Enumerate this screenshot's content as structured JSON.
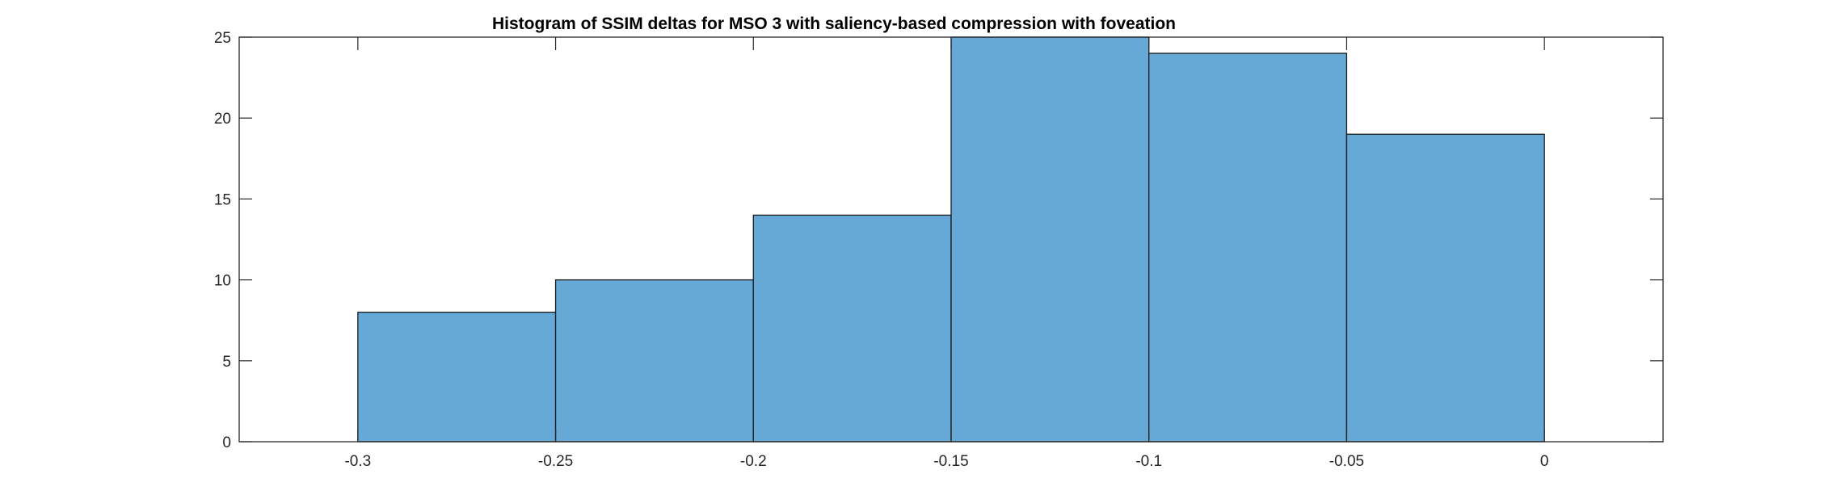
{
  "chart_data": {
    "type": "bar",
    "title": "Histogram of SSIM deltas for MSO 3 with saliency-based compression with foveation",
    "xlabel": "",
    "ylabel": "",
    "bins": [
      {
        "x0": -0.3,
        "x1": -0.25,
        "count": 8
      },
      {
        "x0": -0.25,
        "x1": -0.2,
        "count": 10
      },
      {
        "x0": -0.2,
        "x1": -0.15,
        "count": 14
      },
      {
        "x0": -0.15,
        "x1": -0.1,
        "count": 25
      },
      {
        "x0": -0.1,
        "x1": -0.05,
        "count": 24
      },
      {
        "x0": -0.05,
        "x1": 0.0,
        "count": 19
      }
    ],
    "xlim": [
      -0.33,
      0.03
    ],
    "ylim": [
      0,
      25
    ],
    "xticks": [
      -0.3,
      -0.25,
      -0.2,
      -0.15,
      -0.1,
      -0.05,
      0
    ],
    "xtick_labels": [
      "-0.3",
      "-0.25",
      "-0.2",
      "-0.15",
      "-0.1",
      "-0.05",
      "0"
    ],
    "yticks": [
      0,
      5,
      10,
      15,
      20,
      25
    ],
    "ytick_labels": [
      "0",
      "5",
      "10",
      "15",
      "20",
      "25"
    ],
    "grid": false,
    "legend": "none",
    "colors": {
      "bar_fill": "#66a9d6",
      "bar_edge": "#1a1a1a",
      "axis": "#262626"
    }
  }
}
